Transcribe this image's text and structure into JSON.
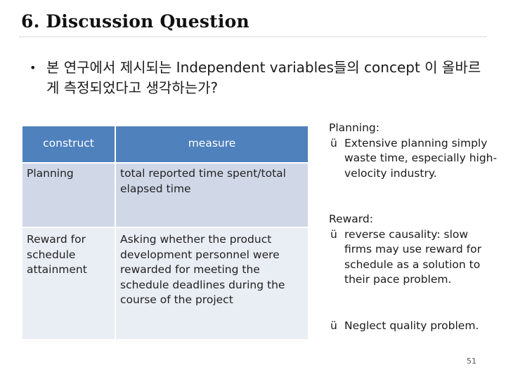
{
  "slide": {
    "title": "6. Discussion Question",
    "bullet": "본 연구에서 제시되는 Independent variables들의 concept 이 올바르게 측정되었다고 생각하는가?",
    "bullet_marker": "•",
    "page_number": "51"
  },
  "table": {
    "headers": [
      "construct",
      "measure"
    ],
    "rows": [
      {
        "construct": "Planning",
        "measure": "total reported time spent/total elapsed time"
      },
      {
        "construct": "Reward for schedule attainment",
        "measure": "Asking whether the product development personnel were rewarded for meeting the schedule deadlines during the course of the project"
      }
    ]
  },
  "notes": {
    "check_mark": "ü",
    "planning_heading": "Planning:",
    "planning_item": "Extensive planning simply waste time, especially high-velocity industry.",
    "reward_heading": "Reward:",
    "reward_item": "reverse causality: slow firms may use reward for schedule as a solution to their pace problem.",
    "extra_item": "Neglect quality problem."
  },
  "colors": {
    "header_fill": "#4f81bd",
    "row1_fill": "#d0d8e8",
    "row2_fill": "#e9edf4"
  }
}
